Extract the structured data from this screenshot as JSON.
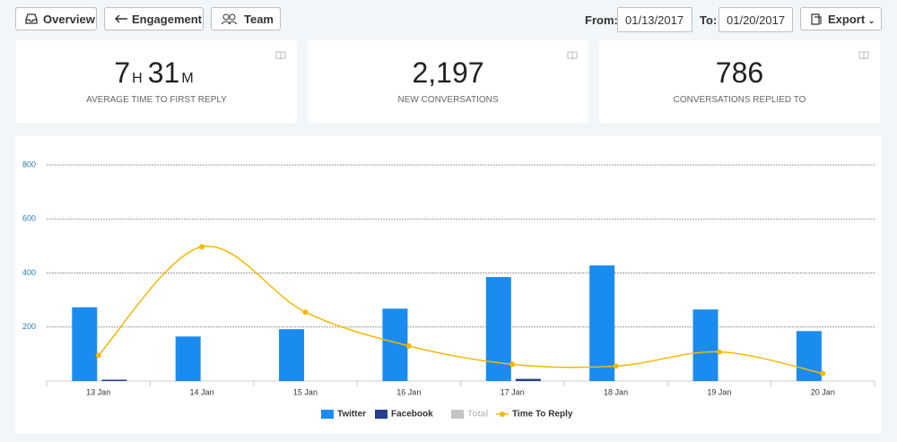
{
  "toolbar": {
    "buttons": [
      "Overview",
      "Engagement",
      "Team"
    ],
    "from_label": "From:",
    "from_date": "01/13/2017",
    "to_label": "To:",
    "to_date": "01/20/2017",
    "export": "Export"
  },
  "stats": [
    {
      "hours": "7",
      "hours_unit": "H",
      "minutes": "31",
      "minutes_unit": "M",
      "label": "AVERAGE TIME TO FIRST REPLY"
    },
    {
      "value": "2,197",
      "label": "NEW CONVERSATIONS"
    },
    {
      "value": "786",
      "label": "CONVERSATIONS REPLIED TO"
    }
  ],
  "chart_data": {
    "type": "bar",
    "categories": [
      "13 Jan",
      "14 Jan",
      "15 Jan",
      "16 Jan",
      "17 Jan",
      "18 Jan",
      "19 Jan",
      "20 Jan"
    ],
    "series": [
      {
        "name": "Twitter",
        "color": "#1a8cf0",
        "values": [
          273,
          165,
          192,
          268,
          385,
          428,
          265,
          185
        ]
      },
      {
        "name": "Facebook",
        "color": "#243f8c",
        "values": [
          5,
          0,
          0,
          0,
          8,
          0,
          0,
          0
        ]
      },
      {
        "name": "Total",
        "color": "#c4c4c4",
        "values": [
          null,
          null,
          null,
          null,
          null,
          null,
          null,
          null
        ]
      },
      {
        "name": "Time To Reply",
        "type": "line",
        "color": "#f5b800",
        "values": [
          95,
          497,
          255,
          130,
          62,
          55,
          108,
          28
        ]
      }
    ],
    "ylim": [
      0,
      800
    ],
    "yticks": [
      200,
      400,
      600,
      800
    ],
    "grid": true,
    "legend": "bottom"
  }
}
